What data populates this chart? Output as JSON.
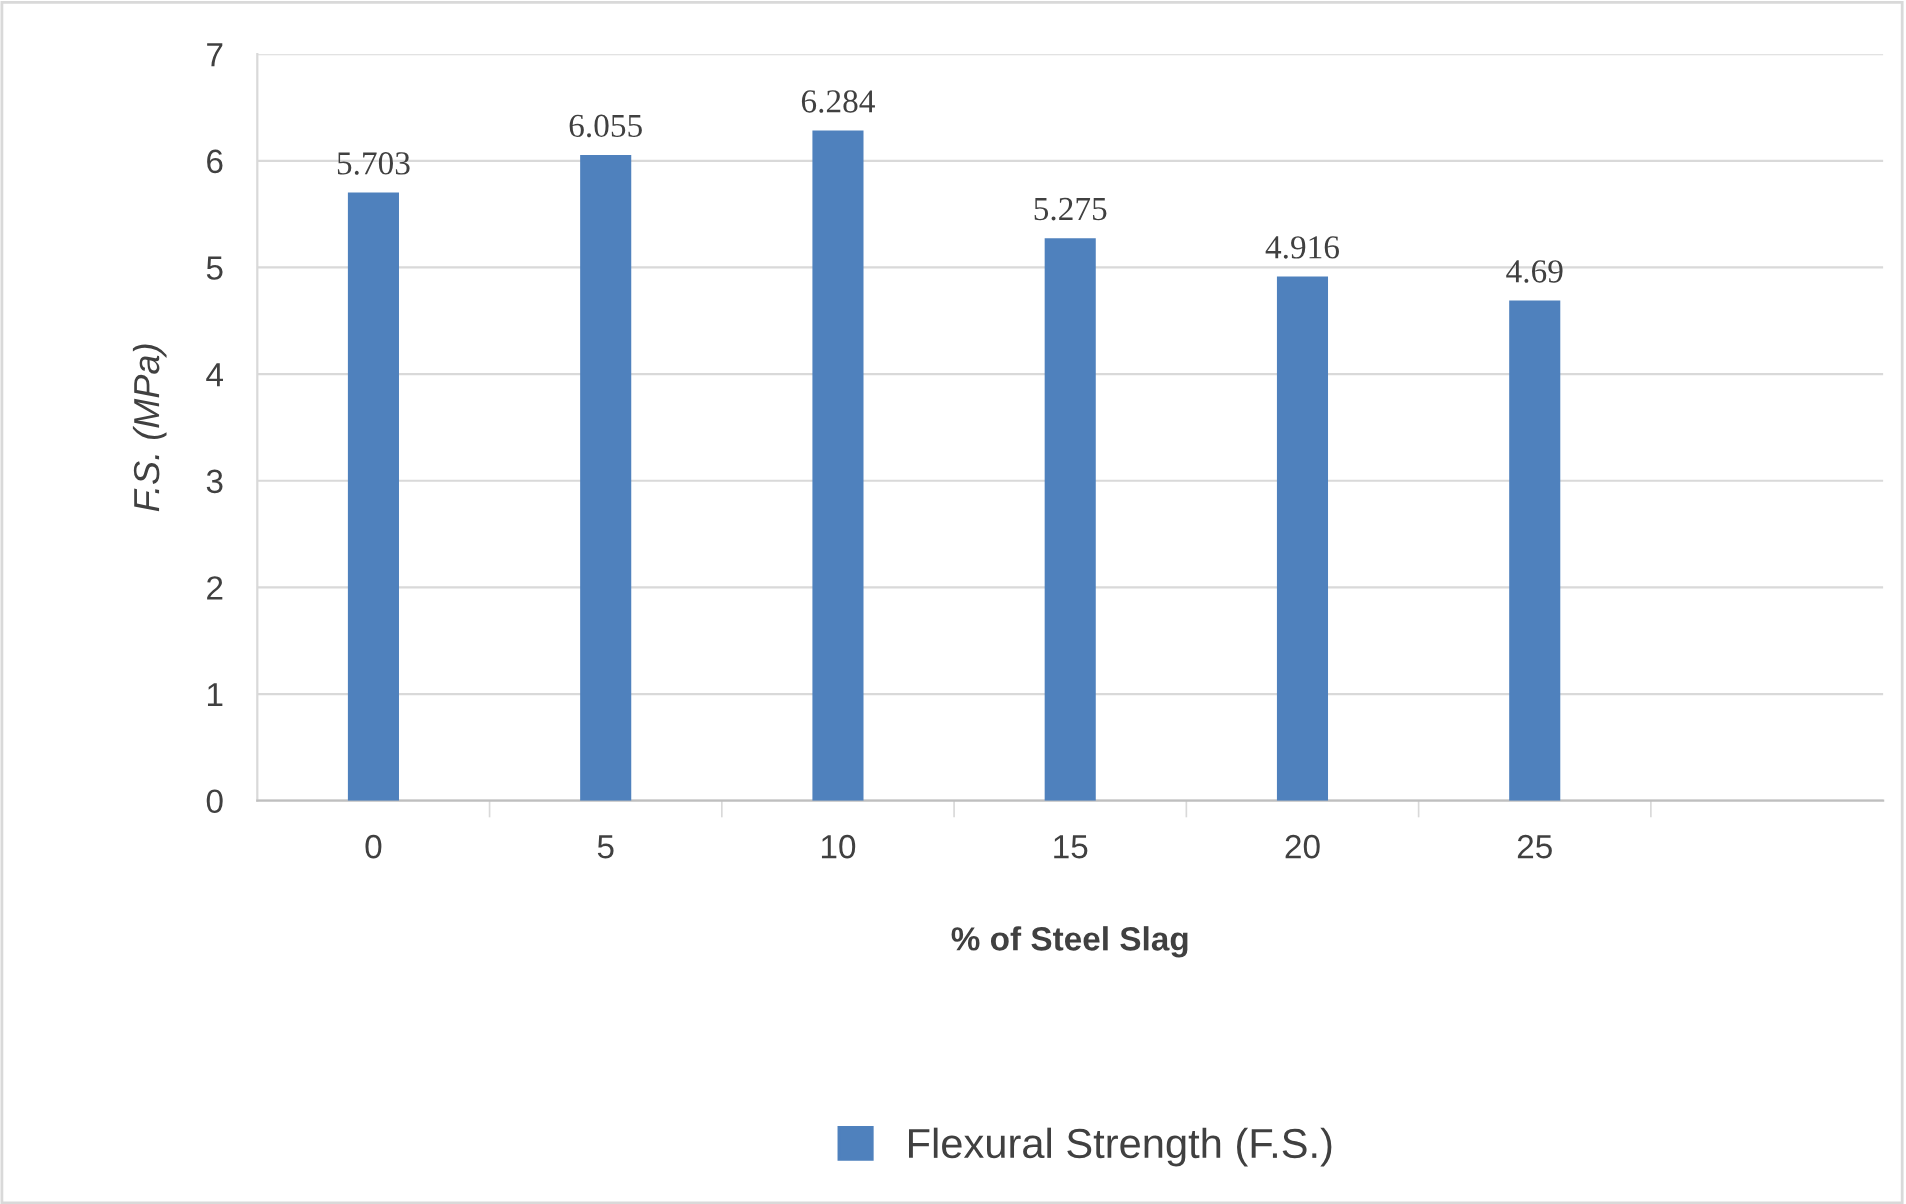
{
  "chart_data": {
    "type": "bar",
    "xlabel": "% of Steel Slag",
    "ylabel": "F.S. (MPa)",
    "categories": [
      "0",
      "5",
      "10",
      "15",
      "20",
      "25",
      null
    ],
    "series": [
      {
        "name": "Flexural Strength (F.S.)",
        "color": "#4f81bd",
        "values": [
          5.703,
          6.055,
          6.284,
          5.275,
          4.916,
          4.69,
          null
        ]
      }
    ],
    "ylim": [
      0,
      7
    ],
    "yticks": [
      0,
      1,
      2,
      3,
      4,
      5,
      6,
      7
    ],
    "grid": "y",
    "legend": "bottom",
    "data_labels": true
  }
}
